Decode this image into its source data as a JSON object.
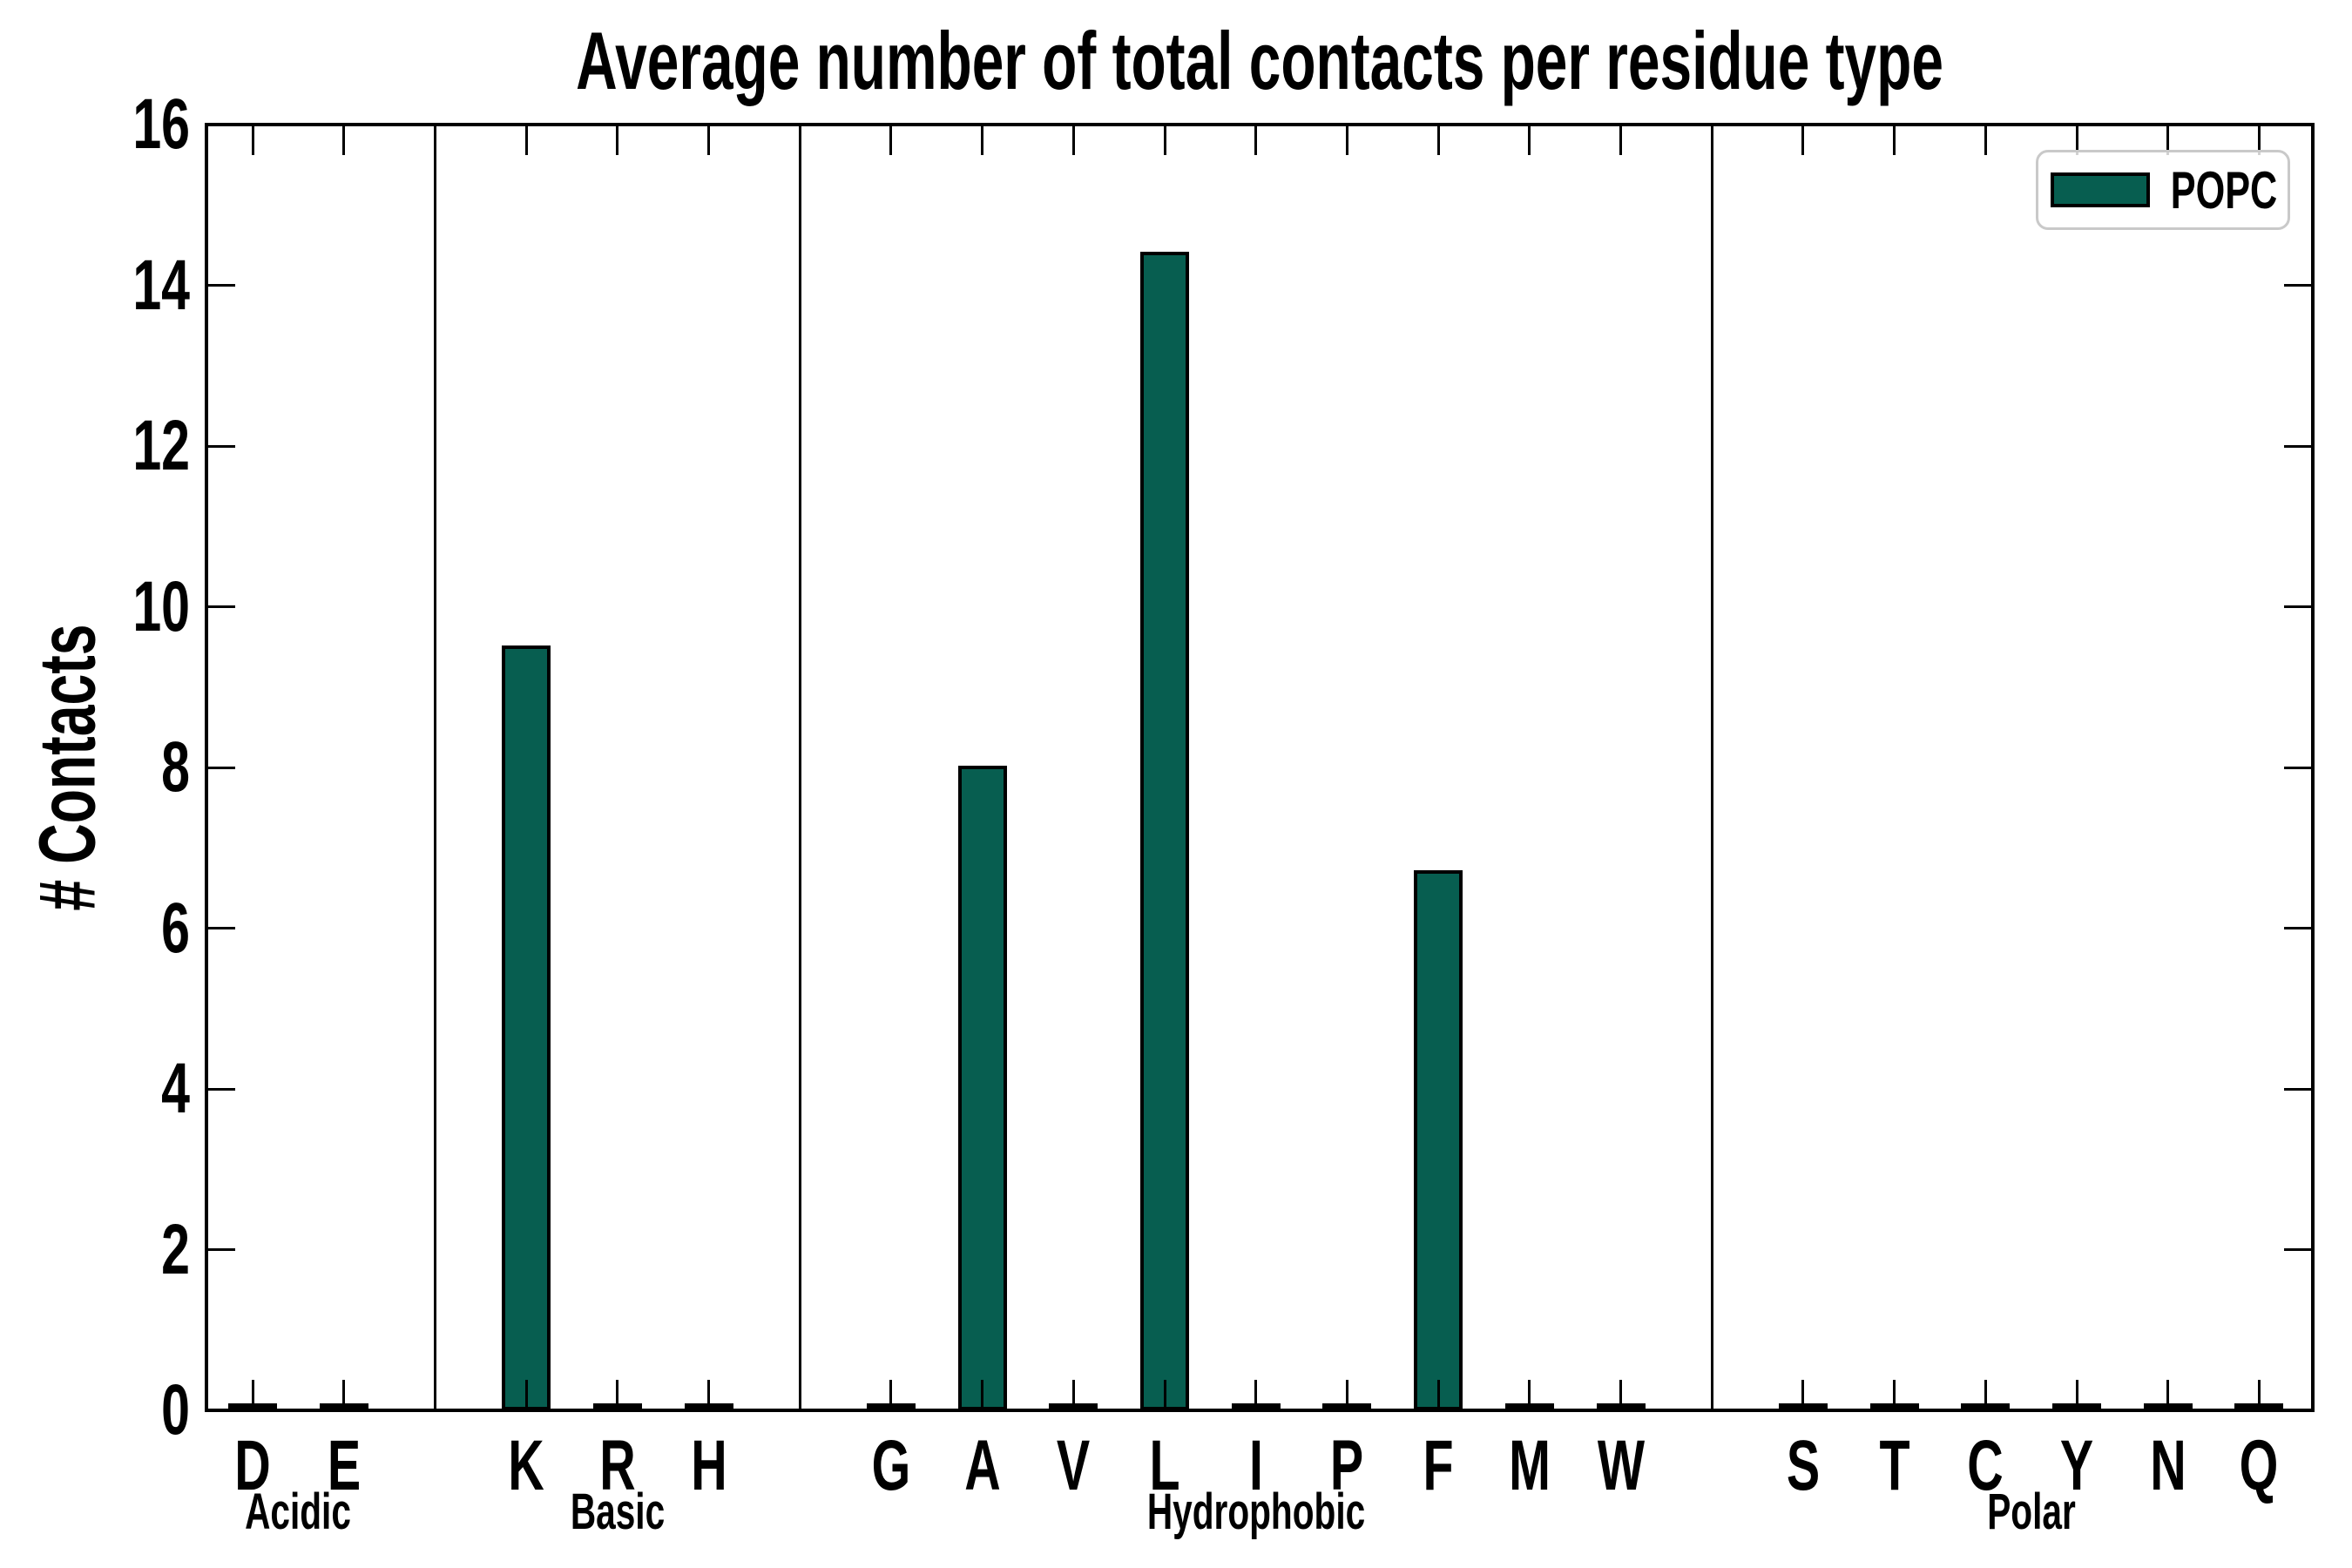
{
  "chart_data": {
    "type": "bar",
    "title": "Average number of total contacts per residue type",
    "ylabel": "# Contacts",
    "xlabel": "",
    "ylim": [
      0,
      16
    ],
    "y_ticks": [
      0,
      2,
      4,
      6,
      8,
      10,
      12,
      14,
      16
    ],
    "grid": false,
    "categories": [
      "D",
      "E",
      "K",
      "R",
      "H",
      "G",
      "A",
      "V",
      "L",
      "I",
      "P",
      "F",
      "M",
      "W",
      "S",
      "T",
      "C",
      "Y",
      "N",
      "Q"
    ],
    "category_positions": [
      0,
      1,
      3,
      4,
      5,
      7,
      8,
      9,
      10,
      11,
      12,
      13,
      14,
      15,
      17,
      18,
      19,
      20,
      21,
      22
    ],
    "series": [
      {
        "name": "POPC",
        "color": "#075e50",
        "edge_color": "#000000",
        "values": [
          0.05,
          0.05,
          9.5,
          0.05,
          0.05,
          0.05,
          8.0,
          0.05,
          14.4,
          0.05,
          0.05,
          6.7,
          0.05,
          0.05,
          0.05,
          0.05,
          0.05,
          0.05,
          0.05,
          0.05
        ]
      }
    ],
    "groups": [
      {
        "label": "Acidic",
        "members": [
          "D",
          "E"
        ]
      },
      {
        "label": "Basic",
        "members": [
          "K",
          "R",
          "H"
        ]
      },
      {
        "label": "Hydrophobic",
        "members": [
          "G",
          "A",
          "V",
          "L",
          "I",
          "P",
          "F",
          "M",
          "W"
        ]
      },
      {
        "label": "Polar",
        "members": [
          "S",
          "T",
          "C",
          "Y",
          "N",
          "Q"
        ]
      }
    ],
    "separator_positions": [
      2,
      6,
      16
    ],
    "legend": {
      "position": "upper right",
      "entries": [
        {
          "label": "POPC",
          "color": "#075e50"
        }
      ]
    }
  }
}
